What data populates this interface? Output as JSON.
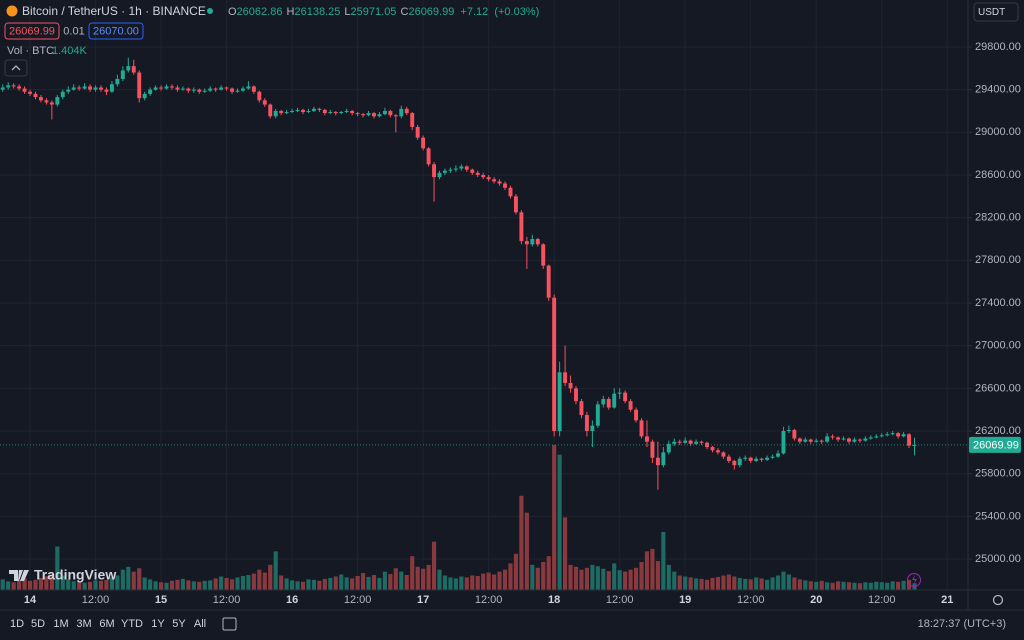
{
  "header": {
    "symbol": "Bitcoin / TetherUS · 1h · BINANCE",
    "ohlc_labels": [
      "O",
      "H",
      "L",
      "C"
    ],
    "change": "+7.12",
    "change_pct": "(+0.03%)",
    "spread": "0.01",
    "buy_price": "26070.00",
    "volume_title": "Vol · BTC",
    "volume_value_label": "1.404K",
    "currency": "USDT"
  },
  "watermark": "TradingView",
  "toolbar": {
    "ranges": [
      "1D",
      "5D",
      "1M",
      "3M",
      "6M",
      "YTD",
      "1Y",
      "5Y",
      "All"
    ],
    "clock": "18:27:37 (UTC+3)"
  },
  "chart_data": {
    "type": "candlestick",
    "up_color": "#22ab94",
    "down_color": "#f7525f",
    "volume_up_color": "#1d6b63",
    "volume_down_color": "#8a3a3f",
    "grid": true,
    "xlim": [
      -0.5,
      176.8
    ],
    "ylim": [
      24710,
      30240
    ],
    "xticks": [
      {
        "value": 5,
        "label": "14"
      },
      {
        "value": 17,
        "label": "12:00"
      },
      {
        "value": 29,
        "label": "15"
      },
      {
        "value": 41,
        "label": "12:00"
      },
      {
        "value": 53,
        "label": "16"
      },
      {
        "value": 65,
        "label": "12:00"
      },
      {
        "value": 77,
        "label": "17"
      },
      {
        "value": 89,
        "label": "12:00"
      },
      {
        "value": 101,
        "label": "18"
      },
      {
        "value": 113,
        "label": "12:00"
      },
      {
        "value": 125,
        "label": "19"
      },
      {
        "value": 137,
        "label": "12:00"
      },
      {
        "value": 149,
        "label": "20"
      },
      {
        "value": 161,
        "label": "12:00"
      },
      {
        "value": 173,
        "label": "21"
      }
    ],
    "yticks": [
      {
        "value": 25000,
        "label": "25000.00"
      },
      {
        "value": 25400,
        "label": "25400.00"
      },
      {
        "value": 25800,
        "label": "25800.00"
      },
      {
        "value": 26200,
        "label": "26200.00"
      },
      {
        "value": 26600,
        "label": "26600.00"
      },
      {
        "value": 27000,
        "label": "27000.00"
      },
      {
        "value": 27400,
        "label": "27400.00"
      },
      {
        "value": 27800,
        "label": "27800.00"
      },
      {
        "value": 28200,
        "label": "28200.00"
      },
      {
        "value": 28600,
        "label": "28600.00"
      },
      {
        "value": 29000,
        "label": "29000.00"
      },
      {
        "value": 29400,
        "label": "29400.00"
      },
      {
        "value": 29800,
        "label": "29800.00"
      }
    ],
    "ohlc": [
      [
        29400,
        29450,
        29380,
        29420
      ],
      [
        29420,
        29470,
        29400,
        29440
      ],
      [
        29440,
        29460,
        29410,
        29430
      ],
      [
        29430,
        29450,
        29390,
        29410
      ],
      [
        29410,
        29430,
        29360,
        29380
      ],
      [
        29380,
        29400,
        29340,
        29360
      ],
      [
        29360,
        29380,
        29310,
        29330
      ],
      [
        29330,
        29350,
        29280,
        29300
      ],
      [
        29300,
        29320,
        29260,
        29280
      ],
      [
        29280,
        29300,
        29120,
        29260
      ],
      [
        29260,
        29350,
        29240,
        29330
      ],
      [
        29330,
        29400,
        29310,
        29380
      ],
      [
        29380,
        29430,
        29360,
        29400
      ],
      [
        29400,
        29450,
        29390,
        29420
      ],
      [
        29420,
        29440,
        29390,
        29410
      ],
      [
        29410,
        29460,
        29400,
        29430
      ],
      [
        29430,
        29450,
        29380,
        29400
      ],
      [
        29400,
        29440,
        29380,
        29420
      ],
      [
        29420,
        29440,
        29380,
        29400
      ],
      [
        29400,
        29420,
        29350,
        29380
      ],
      [
        29380,
        29480,
        29370,
        29450
      ],
      [
        29450,
        29540,
        29430,
        29500
      ],
      [
        29500,
        29620,
        29480,
        29580
      ],
      [
        29580,
        29700,
        29560,
        29620
      ],
      [
        29620,
        29680,
        29540,
        29560
      ],
      [
        29560,
        29580,
        29280,
        29320
      ],
      [
        29320,
        29380,
        29300,
        29360
      ],
      [
        29360,
        29420,
        29340,
        29400
      ],
      [
        29400,
        29440,
        29390,
        29420
      ],
      [
        29420,
        29440,
        29390,
        29410
      ],
      [
        29410,
        29450,
        29400,
        29430
      ],
      [
        29430,
        29450,
        29400,
        29420
      ],
      [
        29420,
        29440,
        29380,
        29400
      ],
      [
        29400,
        29430,
        29390,
        29410
      ],
      [
        29410,
        29420,
        29370,
        29390
      ],
      [
        29390,
        29420,
        29370,
        29400
      ],
      [
        29400,
        29410,
        29360,
        29380
      ],
      [
        29380,
        29410,
        29370,
        29390
      ],
      [
        29390,
        29430,
        29380,
        29410
      ],
      [
        29410,
        29420,
        29380,
        29400
      ],
      [
        29400,
        29440,
        29390,
        29420
      ],
      [
        29420,
        29430,
        29390,
        29410
      ],
      [
        29410,
        29420,
        29360,
        29380
      ],
      [
        29380,
        29410,
        29370,
        29390
      ],
      [
        29390,
        29430,
        29380,
        29410
      ],
      [
        29410,
        29480,
        29400,
        29430
      ],
      [
        29430,
        29440,
        29360,
        29380
      ],
      [
        29380,
        29390,
        29280,
        29300
      ],
      [
        29300,
        29320,
        29240,
        29260
      ],
      [
        29260,
        29270,
        29130,
        29150
      ],
      [
        29150,
        29220,
        29130,
        29200
      ],
      [
        29200,
        29210,
        29160,
        29180
      ],
      [
        29180,
        29210,
        29170,
        29190
      ],
      [
        29190,
        29220,
        29180,
        29200
      ],
      [
        29200,
        29230,
        29190,
        29210
      ],
      [
        29210,
        29220,
        29170,
        29190
      ],
      [
        29190,
        29220,
        29180,
        29200
      ],
      [
        29200,
        29240,
        29190,
        29220
      ],
      [
        29220,
        29230,
        29190,
        29210
      ],
      [
        29210,
        29220,
        29160,
        29180
      ],
      [
        29180,
        29210,
        29170,
        29190
      ],
      [
        29190,
        29200,
        29160,
        29180
      ],
      [
        29180,
        29200,
        29170,
        29190
      ],
      [
        29190,
        29220,
        29180,
        29200
      ],
      [
        29200,
        29210,
        29160,
        29180
      ],
      [
        29180,
        29190,
        29150,
        29170
      ],
      [
        29170,
        29180,
        29140,
        29160
      ],
      [
        29160,
        29200,
        29150,
        29180
      ],
      [
        29180,
        29190,
        29130,
        29150
      ],
      [
        29150,
        29190,
        29140,
        29170
      ],
      [
        29170,
        29230,
        29160,
        29200
      ],
      [
        29200,
        29210,
        29140,
        29160
      ],
      [
        29160,
        29170,
        29000,
        29150
      ],
      [
        29150,
        29250,
        29130,
        29220
      ],
      [
        29220,
        29240,
        29160,
        29180
      ],
      [
        29180,
        29190,
        29020,
        29050
      ],
      [
        29050,
        29070,
        28930,
        28950
      ],
      [
        28950,
        28970,
        28830,
        28850
      ],
      [
        28850,
        28860,
        28680,
        28700
      ],
      [
        28700,
        28720,
        28350,
        28580
      ],
      [
        28580,
        28640,
        28560,
        28620
      ],
      [
        28620,
        28660,
        28600,
        28640
      ],
      [
        28640,
        28670,
        28620,
        28650
      ],
      [
        28650,
        28690,
        28630,
        28660
      ],
      [
        28660,
        28700,
        28640,
        28680
      ],
      [
        28680,
        28690,
        28630,
        28650
      ],
      [
        28650,
        28660,
        28600,
        28620
      ],
      [
        28620,
        28640,
        28580,
        28600
      ],
      [
        28600,
        28620,
        28560,
        28580
      ],
      [
        28580,
        28600,
        28540,
        28560
      ],
      [
        28560,
        28580,
        28520,
        28540
      ],
      [
        28540,
        28560,
        28500,
        28520
      ],
      [
        28520,
        28540,
        28460,
        28480
      ],
      [
        28480,
        28500,
        28380,
        28400
      ],
      [
        28400,
        28420,
        28230,
        28250
      ],
      [
        28250,
        28270,
        27950,
        27980
      ],
      [
        27980,
        28020,
        27720,
        27950
      ],
      [
        27950,
        28040,
        27930,
        28000
      ],
      [
        28000,
        28010,
        27930,
        27950
      ],
      [
        27950,
        27960,
        27720,
        27750
      ],
      [
        27750,
        27760,
        27420,
        27450
      ],
      [
        27450,
        27480,
        26150,
        26200
      ],
      [
        26200,
        26850,
        26150,
        26750
      ],
      [
        26750,
        27000,
        26620,
        26650
      ],
      [
        26650,
        26720,
        26560,
        26600
      ],
      [
        26600,
        26620,
        26450,
        26480
      ],
      [
        26480,
        26500,
        26320,
        26350
      ],
      [
        26350,
        26380,
        26150,
        26200
      ],
      [
        26200,
        26300,
        26050,
        26250
      ],
      [
        26250,
        26480,
        26230,
        26450
      ],
      [
        26450,
        26530,
        26420,
        26500
      ],
      [
        26500,
        26520,
        26400,
        26420
      ],
      [
        26420,
        26600,
        26410,
        26550
      ],
      [
        26550,
        26600,
        26500,
        26560
      ],
      [
        26560,
        26580,
        26460,
        26480
      ],
      [
        26480,
        26500,
        26380,
        26400
      ],
      [
        26400,
        26420,
        26280,
        26300
      ],
      [
        26300,
        26320,
        26130,
        26150
      ],
      [
        26150,
        26300,
        26050,
        26100
      ],
      [
        26100,
        26120,
        25900,
        25950
      ],
      [
        25950,
        26100,
        25650,
        25880
      ],
      [
        25880,
        26050,
        25860,
        26000
      ],
      [
        26000,
        26110,
        25980,
        26080
      ],
      [
        26080,
        26130,
        26060,
        26100
      ],
      [
        26100,
        26120,
        26070,
        26090
      ],
      [
        26090,
        26140,
        26080,
        26110
      ],
      [
        26110,
        26120,
        26060,
        26080
      ],
      [
        26080,
        26120,
        26070,
        26100
      ],
      [
        26100,
        26110,
        26070,
        26090
      ],
      [
        26090,
        26100,
        26030,
        26050
      ],
      [
        26050,
        26060,
        26000,
        26020
      ],
      [
        26020,
        26040,
        25980,
        26000
      ],
      [
        26000,
        26010,
        25940,
        25960
      ],
      [
        25960,
        25980,
        25900,
        25920
      ],
      [
        25920,
        25930,
        25840,
        25880
      ],
      [
        25880,
        25960,
        25860,
        25940
      ],
      [
        25940,
        25970,
        25920,
        25950
      ],
      [
        25950,
        25960,
        25900,
        25920
      ],
      [
        25920,
        25960,
        25910,
        25940
      ],
      [
        25940,
        25950,
        25910,
        25930
      ],
      [
        25930,
        25970,
        25920,
        25950
      ],
      [
        25950,
        25980,
        25940,
        25960
      ],
      [
        25960,
        26020,
        25950,
        25990
      ],
      [
        25990,
        26240,
        25980,
        26200
      ],
      [
        26200,
        26250,
        26180,
        26210
      ],
      [
        26210,
        26220,
        26110,
        26130
      ],
      [
        26130,
        26140,
        26080,
        26100
      ],
      [
        26100,
        26140,
        26090,
        26120
      ],
      [
        26120,
        26130,
        26080,
        26100
      ],
      [
        26100,
        26130,
        26090,
        26110
      ],
      [
        26110,
        26120,
        26080,
        26100
      ],
      [
        26100,
        26180,
        26090,
        26150
      ],
      [
        26150,
        26170,
        26120,
        26140
      ],
      [
        26140,
        26150,
        26100,
        26120
      ],
      [
        26120,
        26150,
        26110,
        26130
      ],
      [
        26130,
        26140,
        26080,
        26100
      ],
      [
        26100,
        26140,
        26090,
        26120
      ],
      [
        26120,
        26130,
        26090,
        26110
      ],
      [
        26110,
        26150,
        26100,
        26130
      ],
      [
        26130,
        26160,
        26120,
        26140
      ],
      [
        26140,
        26170,
        26130,
        26150
      ],
      [
        26150,
        26180,
        26140,
        26160
      ],
      [
        26160,
        26190,
        26150,
        26170
      ],
      [
        26170,
        26200,
        26160,
        26180
      ],
      [
        26180,
        26190,
        26130,
        26150
      ],
      [
        26150,
        26190,
        26140,
        26170
      ],
      [
        26170,
        26180,
        26040,
        26062.86
      ],
      [
        26062.86,
        26138.25,
        25971.05,
        26069.99
      ]
    ],
    "volumes": [
      2200,
      1800,
      1600,
      2000,
      2400,
      1900,
      2100,
      2500,
      2800,
      3200,
      9000,
      3000,
      2200,
      1800,
      1600,
      1500,
      1700,
      2000,
      1900,
      2100,
      2600,
      3000,
      4200,
      4800,
      3800,
      4500,
      2600,
      2200,
      1800,
      1600,
      1500,
      1900,
      2100,
      2300,
      2000,
      1800,
      1700,
      1900,
      2000,
      2400,
      2800,
      2500,
      2200,
      2600,
      2900,
      3100,
      3400,
      4200,
      3600,
      5200,
      8000,
      3000,
      2400,
      2000,
      1800,
      1700,
      2200,
      2100,
      1900,
      2300,
      2500,
      2800,
      3200,
      2600,
      2400,
      2900,
      3500,
      2700,
      3100,
      2500,
      3800,
      3300,
      4500,
      3800,
      3100,
      7000,
      4800,
      4400,
      5200,
      10000,
      4200,
      3000,
      2600,
      2400,
      2800,
      2600,
      3000,
      2900,
      3400,
      3600,
      3200,
      3800,
      4200,
      5500,
      7500,
      19500,
      16000,
      5200,
      4600,
      5800,
      7000,
      30000,
      28000,
      15000,
      5200,
      4800,
      4200,
      4600,
      5200,
      4900,
      4400,
      3900,
      5500,
      4100,
      3800,
      4200,
      4600,
      5800,
      8000,
      8500,
      6000,
      12000,
      5200,
      3800,
      3000,
      2800,
      2600,
      2400,
      2300,
      2100,
      2500,
      2700,
      3000,
      3200,
      2800,
      2500,
      2300,
      2200,
      2600,
      2400,
      2100,
      2600,
      3000,
      3800,
      3200,
      2600,
      2200,
      2000,
      1800,
      1700,
      1900,
      1600,
      1500,
      1800,
      1700,
      1600,
      1500,
      1400,
      1600,
      1500,
      1700,
      1600,
      1500,
      1800,
      1700,
      1900,
      2100,
      1404
    ]
  }
}
